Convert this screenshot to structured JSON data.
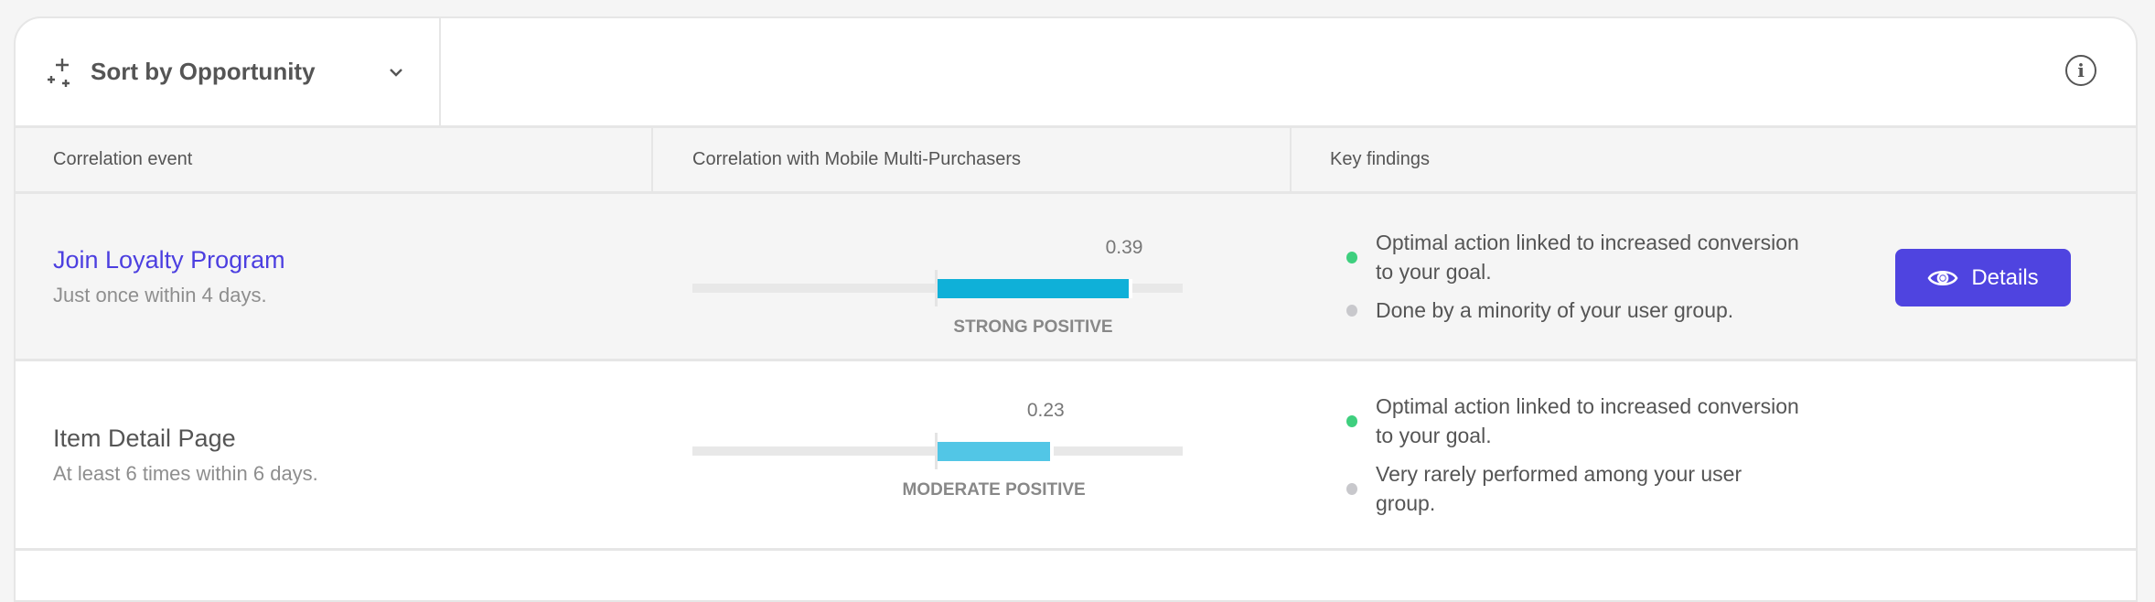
{
  "toolbar": {
    "sort_label": "Sort by Opportunity",
    "sort_icon": "sparkle-icon",
    "chevron_icon": "chevron-down-icon",
    "info_icon": "info-icon"
  },
  "table": {
    "columns": [
      "Correlation event",
      "Correlation with Mobile Multi-Purchasers",
      "Key findings"
    ],
    "rows": [
      {
        "title": "Join Loyalty Program",
        "subtitle": "Just once within 4 days.",
        "link": true,
        "correlation": 0.39,
        "correlation_text": "0.39",
        "strength": "STRONG POSITIVE",
        "bar_color": "#0fb0d8",
        "findings": [
          {
            "text": "Optimal action linked to increased conversion to your goal.",
            "color": "#3ecf7e"
          },
          {
            "text": "Done by a minority of your user group.",
            "color": "#c8c8cc"
          }
        ],
        "action": {
          "label": "Details",
          "icon": "eye-icon"
        }
      },
      {
        "title": "Item Detail Page",
        "subtitle": "At least 6 times within 6 days.",
        "link": false,
        "correlation": 0.23,
        "correlation_text": "0.23",
        "strength": "MODERATE POSITIVE",
        "bar_color": "#52c6e6",
        "findings": [
          {
            "text": "Optimal action linked to increased conversion to your goal.",
            "color": "#3ecf7e"
          },
          {
            "text": "Very rarely performed among your user group.",
            "color": "#c8c8cc"
          }
        ]
      }
    ]
  },
  "colors": {
    "accent": "#4f44e0",
    "link": "#4c3fe0"
  }
}
